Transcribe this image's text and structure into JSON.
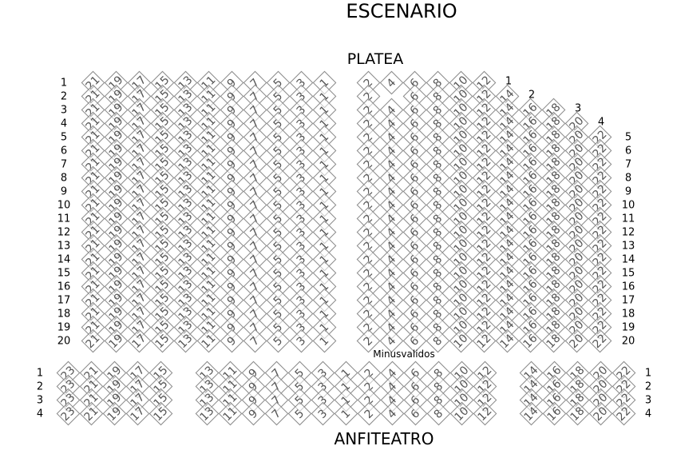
{
  "titles": {
    "stage": "ESCENARIO",
    "platea": "PLATEA",
    "accessible": "Minusvalidos",
    "anfiteatro": "ANFITEATRO"
  },
  "colors": {
    "seat_border": "#8a8a8a",
    "seat_text": "#555555"
  },
  "platea": {
    "left_seats": [
      21,
      19,
      17,
      15,
      13,
      11,
      9,
      7,
      5,
      3,
      1
    ],
    "rows": [
      {
        "label": "1",
        "right_seats": [
          2,
          4,
          6,
          8,
          10,
          12
        ]
      },
      {
        "label": "2",
        "right_seats": [
          2,
          6,
          8,
          10,
          12,
          14
        ]
      },
      {
        "label": "3",
        "right_seats": [
          2,
          4,
          6,
          8,
          10,
          12,
          14,
          16,
          18
        ]
      },
      {
        "label": "4",
        "right_seats": [
          2,
          4,
          6,
          8,
          10,
          12,
          14,
          16,
          18,
          20
        ]
      },
      {
        "label": "5",
        "right_seats": [
          2,
          4,
          6,
          8,
          10,
          12,
          14,
          16,
          18,
          20,
          22
        ]
      },
      {
        "label": "6",
        "right_seats": [
          2,
          4,
          6,
          8,
          10,
          12,
          14,
          16,
          18,
          20,
          22
        ]
      },
      {
        "label": "7",
        "right_seats": [
          2,
          4,
          6,
          8,
          10,
          12,
          14,
          16,
          18,
          20,
          22
        ]
      },
      {
        "label": "8",
        "right_seats": [
          2,
          4,
          6,
          8,
          10,
          12,
          14,
          16,
          18,
          20,
          22
        ]
      },
      {
        "label": "9",
        "right_seats": [
          2,
          4,
          6,
          8,
          10,
          12,
          14,
          16,
          18,
          20,
          22
        ]
      },
      {
        "label": "10",
        "right_seats": [
          2,
          4,
          6,
          8,
          10,
          12,
          14,
          16,
          18,
          20,
          22
        ]
      },
      {
        "label": "11",
        "right_seats": [
          2,
          4,
          6,
          8,
          10,
          12,
          14,
          16,
          18,
          20,
          22
        ]
      },
      {
        "label": "12",
        "right_seats": [
          2,
          4,
          6,
          8,
          10,
          12,
          14,
          16,
          18,
          20,
          22
        ]
      },
      {
        "label": "13",
        "right_seats": [
          2,
          4,
          6,
          8,
          10,
          12,
          14,
          16,
          18,
          20,
          22
        ]
      },
      {
        "label": "14",
        "right_seats": [
          2,
          4,
          6,
          8,
          10,
          12,
          14,
          16,
          18,
          20,
          22
        ]
      },
      {
        "label": "15",
        "right_seats": [
          2,
          4,
          6,
          8,
          10,
          12,
          14,
          16,
          18,
          20,
          22
        ]
      },
      {
        "label": "16",
        "right_seats": [
          2,
          4,
          6,
          8,
          10,
          12,
          14,
          16,
          18,
          20,
          22
        ]
      },
      {
        "label": "17",
        "right_seats": [
          2,
          4,
          6,
          8,
          10,
          12,
          14,
          16,
          18,
          20,
          22
        ]
      },
      {
        "label": "18",
        "right_seats": [
          2,
          4,
          6,
          8,
          10,
          12,
          14,
          16,
          18,
          20,
          22
        ]
      },
      {
        "label": "19",
        "right_seats": [
          2,
          4,
          6,
          8,
          10,
          12,
          14,
          16,
          18,
          20,
          22
        ]
      },
      {
        "label": "20",
        "right_seats": [
          2,
          4,
          6,
          8,
          10,
          12,
          14,
          16,
          18,
          20,
          22
        ]
      }
    ]
  },
  "anfiteatro": {
    "seats": [
      23,
      21,
      19,
      17,
      15,
      13,
      11,
      9,
      7,
      5,
      3,
      1,
      2,
      4,
      6,
      8,
      10,
      12,
      14,
      16,
      18,
      20,
      22
    ],
    "rows": [
      {
        "label": "1"
      },
      {
        "label": "2"
      },
      {
        "label": "3"
      },
      {
        "label": "4"
      }
    ]
  }
}
